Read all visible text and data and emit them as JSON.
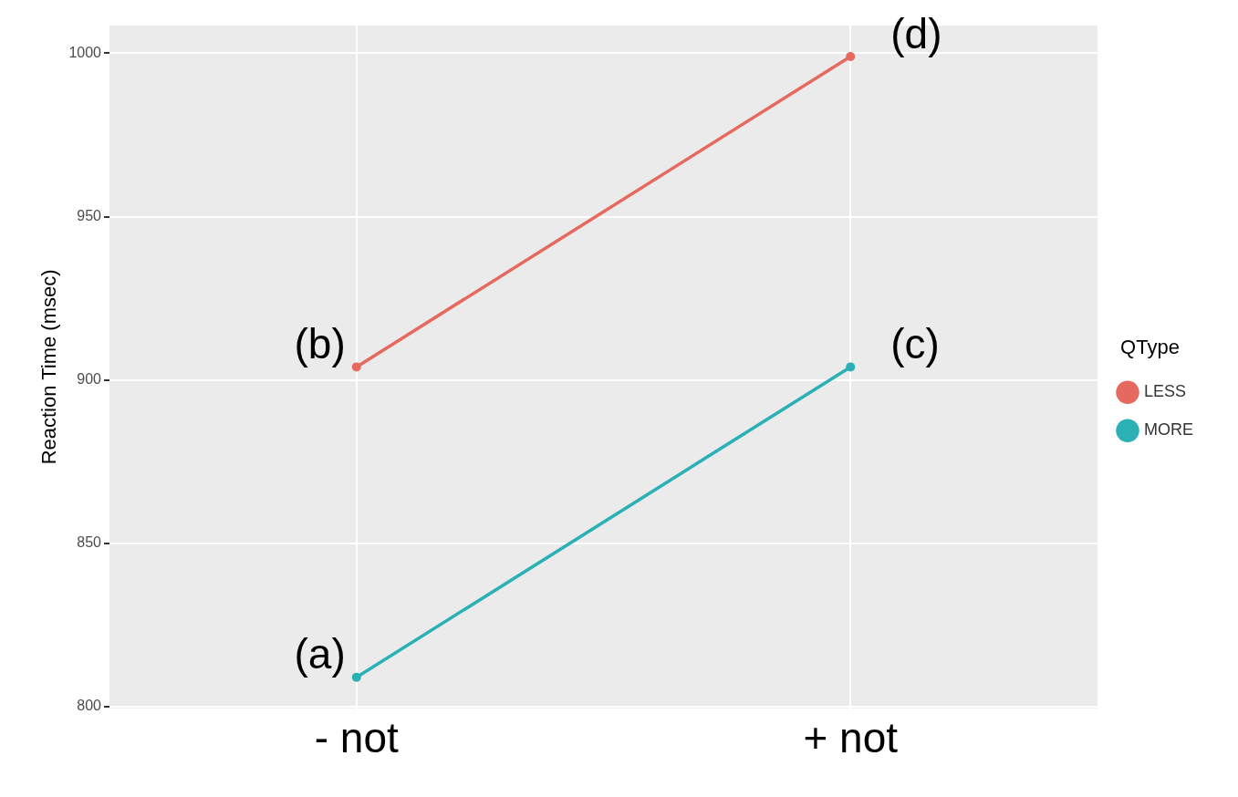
{
  "chart_data": {
    "type": "line",
    "ylabel": "Reaction Time (msec)",
    "legend_title": "QType",
    "categories": [
      "- not",
      "+ not"
    ],
    "series": [
      {
        "name": "LESS",
        "color": "#e5695f",
        "values": [
          904,
          999
        ]
      },
      {
        "name": "MORE",
        "color": "#2bb0b5",
        "values": [
          809,
          904
        ]
      }
    ],
    "ylim": [
      799.5,
      1008.5
    ],
    "yticks": [
      800,
      850,
      900,
      950,
      1000
    ],
    "grid": true,
    "legend": "right",
    "marker": "circle",
    "line_style": "solid",
    "annotations": [
      {
        "text": "(a)",
        "x": "- not",
        "y": 809
      },
      {
        "text": "(b)",
        "x": "- not",
        "y": 904
      },
      {
        "text": "(c)",
        "x": "+ not",
        "y": 904
      },
      {
        "text": "(d)",
        "x": "+ not",
        "y": 999
      }
    ]
  }
}
